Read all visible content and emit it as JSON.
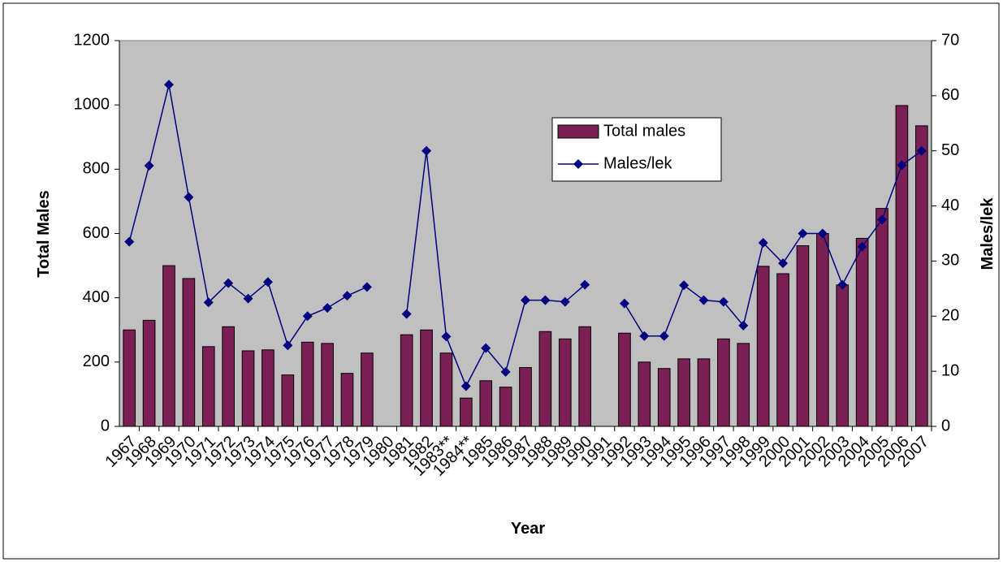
{
  "chart_data": {
    "type": "bar-line",
    "x_label": "Year",
    "y_label": "Total Males",
    "y2_label": "Males/lek",
    "categories": [
      "1967",
      "1968",
      "1969",
      "1970",
      "1971",
      "1972",
      "1973",
      "1974",
      "1975",
      "1976",
      "1977",
      "1978",
      "1979",
      "1980",
      "1981",
      "1982",
      "1983**",
      "1984**",
      "1985",
      "1986",
      "1987",
      "1988",
      "1989",
      "1990",
      "1991",
      "1992",
      "1993",
      "1994",
      "1995",
      "1996",
      "1997",
      "1998",
      "1999",
      "2000",
      "2001",
      "2002",
      "2003",
      "2004",
      "2005",
      "2006",
      "2007"
    ],
    "series": [
      {
        "name": "Total males",
        "type": "bar",
        "color": "#7b1f55",
        "values": [
          300,
          330,
          500,
          460,
          248,
          310,
          235,
          238,
          160,
          262,
          258,
          165,
          228,
          null,
          285,
          300,
          228,
          88,
          142,
          122,
          183,
          295,
          272,
          310,
          null,
          290,
          200,
          180,
          210,
          210,
          272,
          258,
          498,
          475,
          562,
          600,
          440,
          585,
          678,
          998,
          935
        ]
      },
      {
        "name": "Males/lek",
        "type": "line",
        "axis": "y2",
        "color": "#000080",
        "values": [
          33.5,
          47.3,
          62,
          41.6,
          22.5,
          26,
          23.2,
          26.2,
          14.7,
          20,
          21.5,
          23.7,
          25.3,
          null,
          20.4,
          50,
          16.3,
          7.3,
          14.2,
          9.9,
          22.9,
          22.9,
          22.6,
          25.7,
          null,
          22.3,
          16.4,
          16.4,
          25.6,
          22.9,
          22.6,
          18.3,
          33.3,
          29.6,
          35,
          35,
          25.7,
          32.6,
          37.5,
          47.4,
          50
        ]
      }
    ],
    "ylim": [
      0,
      1200
    ],
    "yticks": [
      0,
      200,
      400,
      600,
      800,
      1000,
      1200
    ],
    "y2lim": [
      0,
      70
    ],
    "y2ticks": [
      0,
      10,
      20,
      30,
      40,
      50,
      60,
      70
    ],
    "plot_background": "#c0c0c0"
  }
}
